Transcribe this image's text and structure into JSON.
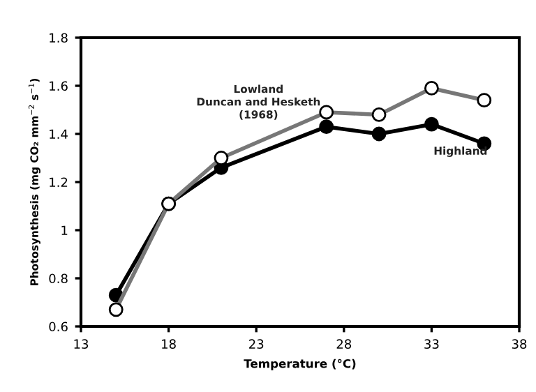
{
  "chart_data": {
    "type": "line",
    "xlabel": "Temperature (°C)",
    "ylabel": "Photosynthesis (mg CO₂ mm$^{−2}$ s$^{−1}$)",
    "x": [
      15,
      18,
      21,
      27,
      30,
      33,
      36
    ],
    "series": [
      {
        "color": "#000000",
        "values": [
          0.73,
          1.11,
          1.26,
          1.43,
          1.4,
          1.44,
          1.36
        ]
      },
      {
        "color": "#777777",
        "values": [
          0.67,
          1.11,
          1.3,
          1.49,
          1.48,
          1.59,
          1.54
        ]
      }
    ],
    "annotations": [
      "Lowland\nDuncan and Hesketh\n(1968)",
      "Highland"
    ],
    "xlim": [
      13,
      38
    ],
    "xticks": [
      13,
      18,
      23,
      28,
      33,
      38
    ],
    "ylim": [
      0.6,
      1.8
    ],
    "yticks": [
      0.6,
      0.8,
      1,
      1.2,
      1.4,
      1.6,
      1.8
    ],
    "marker": "circle",
    "line_style": "solid",
    "grid": false,
    "legend": false
  }
}
